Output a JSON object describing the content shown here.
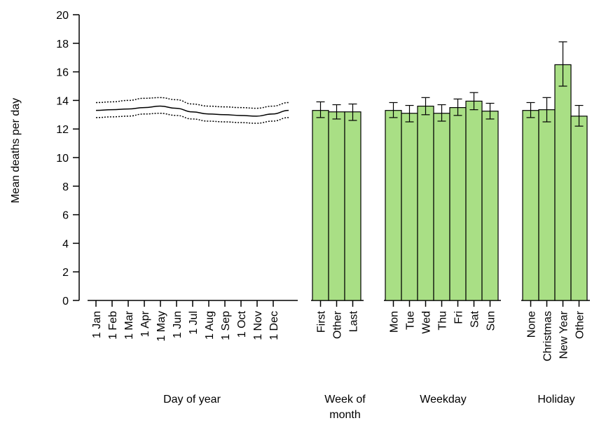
{
  "chart_data": {
    "type": "bar",
    "ylabel": "Mean deaths per day",
    "ylim": [
      0,
      20
    ],
    "yticks": [
      0,
      2,
      4,
      6,
      8,
      10,
      12,
      14,
      16,
      18,
      20
    ],
    "colors": {
      "bar_fill": "#a9df85",
      "line": "#000000"
    },
    "panels": [
      {
        "group_label": "Day of year",
        "type": "line",
        "tick_labels": [
          "1 Jan",
          "1 Feb",
          "1 Mar",
          "1 Apr",
          "1 May",
          "1 Jun",
          "1 Jul",
          "1 Aug",
          "1 Sep",
          "1 Oct",
          "1 Nov",
          "1 Dec"
        ],
        "series": [
          {
            "style": "dotted",
            "values": [
              12.8,
              12.85,
              12.9,
              13.05,
              13.1,
              12.95,
              12.7,
              12.55,
              12.5,
              12.45,
              12.4,
              12.55,
              12.8
            ]
          },
          {
            "style": "solid",
            "values": [
              13.3,
              13.35,
              13.4,
              13.5,
              13.6,
              13.45,
              13.2,
              13.05,
              13.0,
              12.95,
              12.9,
              13.05,
              13.3
            ]
          },
          {
            "style": "dotted",
            "values": [
              13.85,
              13.9,
              14.0,
              14.15,
              14.2,
              14.05,
              13.75,
              13.6,
              13.55,
              13.5,
              13.45,
              13.6,
              13.85
            ]
          }
        ]
      },
      {
        "group_label": "Week of month",
        "type": "bar",
        "categories": [
          "First",
          "Other",
          "Last"
        ],
        "values": [
          13.3,
          13.2,
          13.2
        ],
        "error_low": [
          12.8,
          12.7,
          12.6
        ],
        "error_high": [
          13.9,
          13.7,
          13.75
        ]
      },
      {
        "group_label": "Weekday",
        "type": "bar",
        "categories": [
          "Mon",
          "Tue",
          "Wed",
          "Thu",
          "Fri",
          "Sat",
          "Sun"
        ],
        "values": [
          13.3,
          13.1,
          13.6,
          13.1,
          13.5,
          13.95,
          13.25
        ],
        "error_low": [
          12.8,
          12.5,
          13.0,
          12.55,
          12.95,
          13.35,
          12.7
        ],
        "error_high": [
          13.85,
          13.65,
          14.2,
          13.7,
          14.1,
          14.55,
          13.8
        ]
      },
      {
        "group_label": "Holiday",
        "type": "bar",
        "categories": [
          "None",
          "Christmas",
          "New Year",
          "Other"
        ],
        "values": [
          13.3,
          13.35,
          16.5,
          12.9
        ],
        "error_low": [
          12.8,
          12.5,
          15.0,
          12.2
        ],
        "error_high": [
          13.85,
          14.2,
          18.1,
          13.65
        ]
      }
    ]
  }
}
